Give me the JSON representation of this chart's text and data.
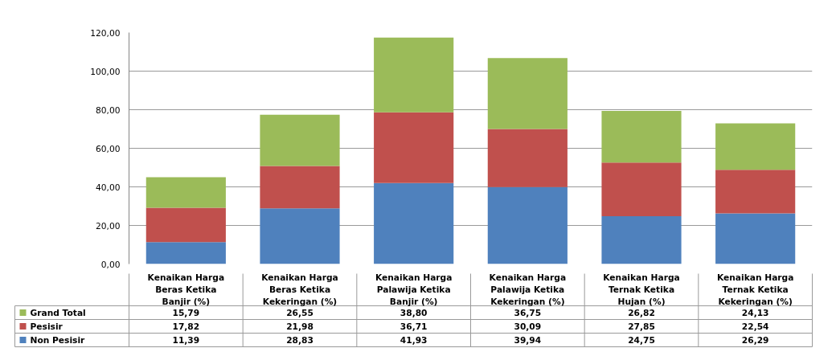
{
  "chart_data": {
    "type": "bar",
    "stacked": true,
    "categories": [
      "Kenaikan Harga Beras Ketika Banjir (%)",
      "Kenaikan Harga Beras Ketika Kekeringan (%)",
      "Kenaikan Harga Palawija Ketika Banjir (%)",
      "Kenaikan Harga Palawija Ketika Kekeringan (%)",
      "Kenaikan Harga Ternak Ketika Hujan (%)",
      "Kenaikan Harga Ternak Ketika Kekeringan (%)"
    ],
    "series": [
      {
        "name": "Non Pesisir",
        "color": "#4f81bd",
        "values": [
          11.39,
          28.83,
          41.93,
          39.94,
          24.75,
          26.29
        ],
        "value_labels": [
          "11,39",
          "28,83",
          "41,93",
          "39,94",
          "24,75",
          "26,29"
        ]
      },
      {
        "name": "Pesisir",
        "color": "#c0504d",
        "values": [
          17.82,
          21.98,
          36.71,
          30.09,
          27.85,
          22.54
        ],
        "value_labels": [
          "17,82",
          "21,98",
          "36,71",
          "30,09",
          "27,85",
          "22,54"
        ]
      },
      {
        "name": "Grand Total",
        "color": "#9bbb59",
        "values": [
          15.79,
          26.55,
          38.8,
          36.75,
          26.82,
          24.13
        ],
        "value_labels": [
          "15,79",
          "26,55",
          "38,80",
          "36,75",
          "26,82",
          "24,13"
        ]
      }
    ],
    "ylim": [
      0,
      120
    ],
    "yticks": [
      {
        "value": 0,
        "label": "0,00"
      },
      {
        "value": 20,
        "label": "20,00"
      },
      {
        "value": 40,
        "label": "40,00"
      },
      {
        "value": 60,
        "label": "60,00"
      },
      {
        "value": 80,
        "label": "80,00"
      },
      {
        "value": 100,
        "label": "100,00"
      },
      {
        "value": 120,
        "label": "120,00"
      }
    ],
    "grid": "y",
    "legend": "bottom"
  }
}
